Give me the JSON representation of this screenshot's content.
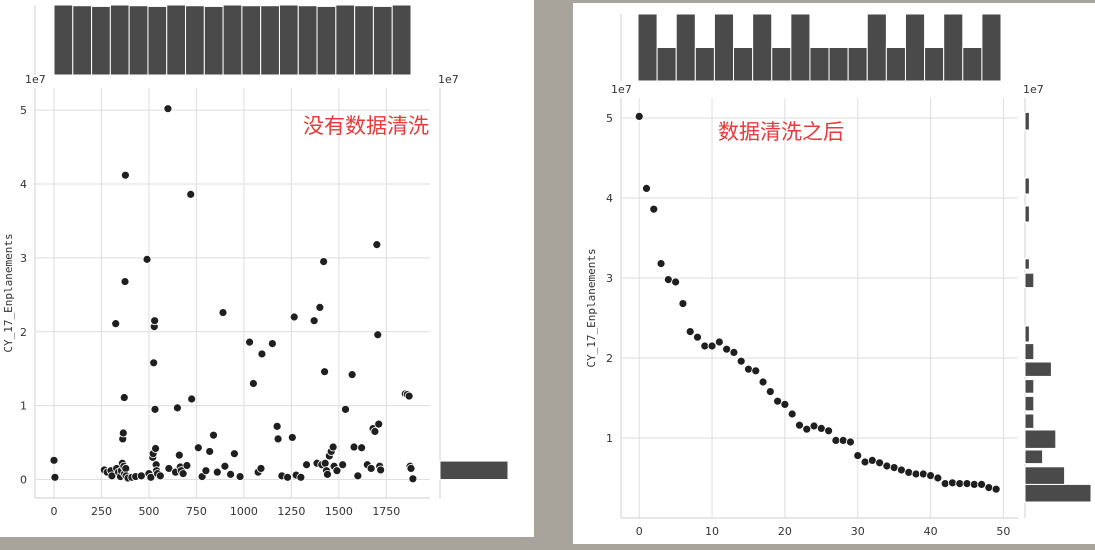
{
  "chart_data": [
    {
      "type": "scatter",
      "annotation": "没有数据清洗",
      "ylabel": "CY_17_Enplanements",
      "y_offset_label": "1e7",
      "marginal_offset_label": "1e7",
      "xlim": [
        -100,
        1980
      ],
      "ylim": [
        -0.25,
        5.3
      ],
      "x_ticks": [
        0,
        250,
        500,
        750,
        1000,
        1250,
        1500,
        1750
      ],
      "y_ticks": [
        0,
        1,
        2,
        3,
        4,
        5
      ],
      "grid": true,
      "marginal_top": "histogram",
      "marginal_right": "histogram",
      "top_hist": [
        0.98,
        0.97,
        0.96,
        0.98,
        0.97,
        0.96,
        0.98,
        0.97,
        0.96,
        0.98,
        0.97,
        0.97,
        0.98,
        0.97,
        0.96,
        0.98,
        0.97,
        0.96,
        0.98
      ],
      "right_hist": [
        {
          "y0": 0,
          "y1": 0.25,
          "count": 1
        }
      ],
      "points": [
        [
          0,
          0.26
        ],
        [
          5,
          0.03
        ],
        [
          265,
          0.13
        ],
        [
          280,
          0.1
        ],
        [
          300,
          0.12
        ],
        [
          305,
          0.05
        ],
        [
          325,
          2.11
        ],
        [
          330,
          0.15
        ],
        [
          340,
          0.1
        ],
        [
          350,
          0.04
        ],
        [
          355,
          0.12
        ],
        [
          360,
          0.22
        ],
        [
          362,
          0.55
        ],
        [
          365,
          0.63
        ],
        [
          368,
          0.18
        ],
        [
          370,
          1.11
        ],
        [
          372,
          0.08
        ],
        [
          374,
          2.68
        ],
        [
          376,
          4.12
        ],
        [
          378,
          0.15
        ],
        [
          380,
          0.05
        ],
        [
          390,
          0.02
        ],
        [
          410,
          0.03
        ],
        [
          430,
          0.04
        ],
        [
          460,
          0.05
        ],
        [
          490,
          2.98
        ],
        [
          500,
          0.08
        ],
        [
          510,
          0.03
        ],
        [
          520,
          0.3
        ],
        [
          522,
          0.35
        ],
        [
          525,
          1.58
        ],
        [
          528,
          2.07
        ],
        [
          530,
          2.15
        ],
        [
          532,
          0.95
        ],
        [
          535,
          0.42
        ],
        [
          538,
          0.2
        ],
        [
          540,
          0.12
        ],
        [
          545,
          0.08
        ],
        [
          560,
          0.05
        ],
        [
          600,
          5.02
        ],
        [
          605,
          0.15
        ],
        [
          640,
          0.1
        ],
        [
          650,
          0.97
        ],
        [
          660,
          0.33
        ],
        [
          665,
          0.17
        ],
        [
          670,
          0.12
        ],
        [
          680,
          0.08
        ],
        [
          700,
          0.19
        ],
        [
          720,
          3.86
        ],
        [
          725,
          1.09
        ],
        [
          760,
          0.43
        ],
        [
          780,
          0.04
        ],
        [
          800,
          0.12
        ],
        [
          820,
          0.38
        ],
        [
          840,
          0.6
        ],
        [
          860,
          0.1
        ],
        [
          890,
          2.26
        ],
        [
          900,
          0.18
        ],
        [
          930,
          0.07
        ],
        [
          950,
          0.35
        ],
        [
          980,
          0.04
        ],
        [
          1030,
          1.86
        ],
        [
          1050,
          1.3
        ],
        [
          1075,
          0.1
        ],
        [
          1090,
          0.15
        ],
        [
          1095,
          1.7
        ],
        [
          1150,
          1.84
        ],
        [
          1175,
          0.72
        ],
        [
          1180,
          0.55
        ],
        [
          1200,
          0.05
        ],
        [
          1230,
          0.03
        ],
        [
          1255,
          0.57
        ],
        [
          1265,
          2.2
        ],
        [
          1275,
          0.06
        ],
        [
          1300,
          0.03
        ],
        [
          1330,
          0.2
        ],
        [
          1370,
          2.15
        ],
        [
          1385,
          0.22
        ],
        [
          1400,
          2.33
        ],
        [
          1410,
          0.2
        ],
        [
          1420,
          2.95
        ],
        [
          1425,
          1.46
        ],
        [
          1428,
          0.22
        ],
        [
          1435,
          0.12
        ],
        [
          1440,
          0.07
        ],
        [
          1450,
          0.32
        ],
        [
          1460,
          0.38
        ],
        [
          1470,
          0.44
        ],
        [
          1475,
          0.18
        ],
        [
          1490,
          0.12
        ],
        [
          1520,
          0.2
        ],
        [
          1535,
          0.95
        ],
        [
          1570,
          1.42
        ],
        [
          1580,
          0.44
        ],
        [
          1600,
          0.05
        ],
        [
          1620,
          0.43
        ],
        [
          1650,
          0.2
        ],
        [
          1670,
          0.15
        ],
        [
          1680,
          0.69
        ],
        [
          1690,
          0.65
        ],
        [
          1700,
          3.18
        ],
        [
          1705,
          1.96
        ],
        [
          1710,
          0.75
        ],
        [
          1715,
          0.18
        ],
        [
          1720,
          0.13
        ],
        [
          1850,
          1.16
        ],
        [
          1860,
          1.15
        ],
        [
          1870,
          1.13
        ],
        [
          1875,
          0.18
        ],
        [
          1880,
          0.15
        ],
        [
          1890,
          0.01
        ]
      ]
    },
    {
      "type": "scatter",
      "annotation": "数据清洗之后",
      "ylabel": "CY_17_Enplanements",
      "y_offset_label": "1e7",
      "marginal_offset_label": "1e7",
      "xlim": [
        -2.5,
        52
      ],
      "ylim": [
        0,
        5.25
      ],
      "x_ticks": [
        0,
        10,
        20,
        30,
        40,
        50
      ],
      "y_ticks": [
        1,
        2,
        3,
        4,
        5
      ],
      "grid": true,
      "marginal_top": "histogram",
      "marginal_right": "histogram",
      "top_hist": [
        2,
        1,
        2,
        1,
        2,
        1,
        2,
        1,
        2,
        1,
        1,
        1,
        2,
        1,
        2,
        1,
        2,
        1,
        2
      ],
      "right_hist": [
        {
          "y0": 0.2,
          "y1": 0.42,
          "count": 15
        },
        {
          "y0": 0.42,
          "y1": 0.64,
          "count": 9
        },
        {
          "y0": 0.68,
          "y1": 0.85,
          "count": 4
        },
        {
          "y0": 0.87,
          "y1": 1.1,
          "count": 7
        },
        {
          "y0": 1.12,
          "y1": 1.3,
          "count": 2
        },
        {
          "y0": 1.34,
          "y1": 1.52,
          "count": 2
        },
        {
          "y0": 1.56,
          "y1": 1.73,
          "count": 2
        },
        {
          "y0": 1.77,
          "y1": 1.95,
          "count": 6
        },
        {
          "y0": 1.98,
          "y1": 2.18,
          "count": 2
        },
        {
          "y0": 2.2,
          "y1": 2.4,
          "count": 1
        },
        {
          "y0": 2.88,
          "y1": 3.06,
          "count": 2
        },
        {
          "y0": 3.11,
          "y1": 3.24,
          "count": 1
        },
        {
          "y0": 3.7,
          "y1": 3.9,
          "count": 1
        },
        {
          "y0": 4.05,
          "y1": 4.25,
          "count": 1
        },
        {
          "y0": 4.85,
          "y1": 5.07,
          "count": 1
        }
      ],
      "points": [
        [
          0,
          5.02
        ],
        [
          1,
          4.12
        ],
        [
          2,
          3.86
        ],
        [
          3,
          3.18
        ],
        [
          4,
          2.98
        ],
        [
          5,
          2.95
        ],
        [
          6,
          2.68
        ],
        [
          7,
          2.33
        ],
        [
          8,
          2.26
        ],
        [
          9,
          2.15
        ],
        [
          10,
          2.15
        ],
        [
          11,
          2.2
        ],
        [
          12,
          2.11
        ],
        [
          13,
          2.07
        ],
        [
          14,
          1.96
        ],
        [
          15,
          1.86
        ],
        [
          16,
          1.84
        ],
        [
          17,
          1.7
        ],
        [
          18,
          1.58
        ],
        [
          19,
          1.46
        ],
        [
          20,
          1.42
        ],
        [
          21,
          1.3
        ],
        [
          22,
          1.16
        ],
        [
          23,
          1.11
        ],
        [
          24,
          1.15
        ],
        [
          25,
          1.12
        ],
        [
          26,
          1.09
        ],
        [
          27,
          0.97
        ],
        [
          28,
          0.97
        ],
        [
          29,
          0.95
        ],
        [
          30,
          0.78
        ],
        [
          31,
          0.7
        ],
        [
          32,
          0.72
        ],
        [
          33,
          0.69
        ],
        [
          34,
          0.65
        ],
        [
          35,
          0.63
        ],
        [
          36,
          0.6
        ],
        [
          37,
          0.57
        ],
        [
          38,
          0.55
        ],
        [
          39,
          0.55
        ],
        [
          40,
          0.53
        ],
        [
          41,
          0.5
        ],
        [
          42,
          0.43
        ],
        [
          43,
          0.44
        ],
        [
          44,
          0.43
        ],
        [
          45,
          0.43
        ],
        [
          46,
          0.42
        ],
        [
          47,
          0.42
        ],
        [
          48,
          0.38
        ],
        [
          49,
          0.36
        ]
      ]
    }
  ]
}
